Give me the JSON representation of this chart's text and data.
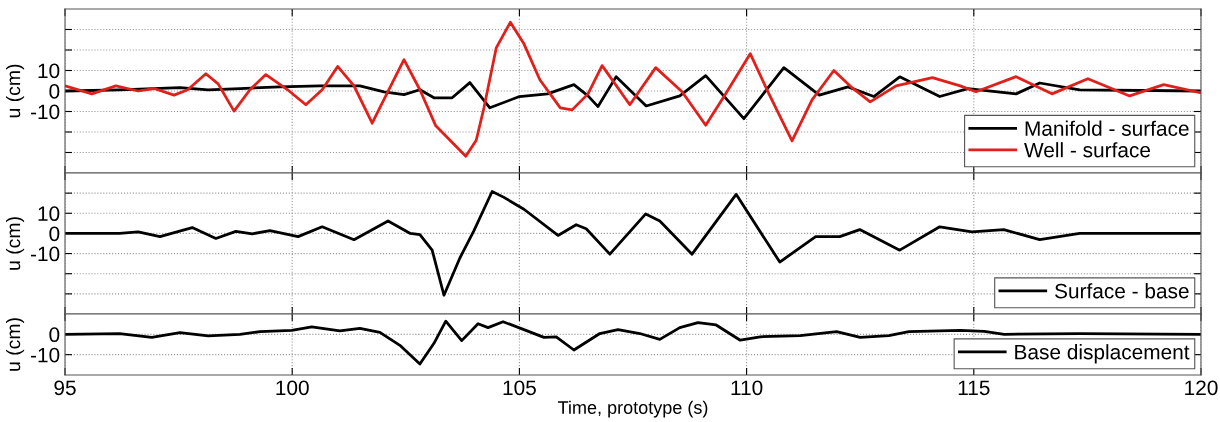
{
  "chart_data": [
    {
      "type": "line",
      "ylabel": "u (cm)",
      "xlim": [
        95,
        120
      ],
      "xticks": [
        95,
        100,
        105,
        110,
        115,
        120
      ],
      "ylim": [
        -40,
        40
      ],
      "yticks": [
        {
          "value": -30,
          "label": null
        },
        {
          "value": -20,
          "label": null
        },
        -10,
        0,
        10,
        {
          "value": 20,
          "label": null
        },
        {
          "value": 30,
          "label": null
        }
      ],
      "tick_labels": "y",
      "grid": true,
      "legend": "bottom right",
      "line_style": "solid",
      "marker": "none",
      "series": [
        {
          "name": "Manifold - surface",
          "color": "#000000",
          "x": [
            95.0,
            96.2,
            97.53,
            98.15,
            98.85,
            99.73,
            100.61,
            101.49,
            102.02,
            102.46,
            102.81,
            103.12,
            103.52,
            103.91,
            104.35,
            105.0,
            105.62,
            106.2,
            106.51,
            106.73,
            107.13,
            107.79,
            108.53,
            109.1,
            109.94,
            110.82,
            111.6,
            112.23,
            112.8,
            113.37,
            114.25,
            114.87,
            115.93,
            116.45,
            117.33,
            119.98
          ],
          "values": [
            0,
            0.6,
            1.6,
            0.6,
            1.2,
            2,
            2.5,
            2.5,
            -0.4,
            -1.8,
            0.6,
            -3.3,
            -3.3,
            4.1,
            -8.2,
            -2.7,
            -1.4,
            3.1,
            -2.4,
            -7.6,
            7,
            -7.3,
            -2.4,
            7.5,
            -13.5,
            11.4,
            -2,
            2,
            -2.7,
            6.9,
            -2.7,
            1.2,
            -1.4,
            3.9,
            0.6,
            0
          ]
        },
        {
          "name": "Well - surface",
          "color": "#e0201b",
          "x": [
            95.0,
            95.59,
            96.12,
            96.61,
            96.96,
            97.4,
            97.7,
            98.1,
            98.37,
            98.72,
            99.07,
            99.42,
            99.9,
            100.3,
            100.66,
            101.0,
            101.36,
            101.76,
            102.15,
            102.46,
            102.81,
            103.16,
            103.43,
            103.82,
            104.05,
            104.22,
            104.49,
            104.8,
            105.1,
            105.45,
            105.9,
            106.16,
            106.51,
            106.82,
            107.43,
            108.0,
            108.58,
            109.1,
            109.54,
            110.08,
            110.47,
            111.0,
            111.44,
            111.92,
            112.32,
            112.72,
            113.29,
            114.09,
            114.7,
            115.05,
            115.93,
            116.72,
            117.51,
            118.43,
            119.18,
            119.98
          ],
          "values": [
            2.5,
            -1.4,
            2.5,
            0,
            1.2,
            -2,
            0.6,
            8.4,
            3.5,
            -9.8,
            0.6,
            8,
            0.6,
            -6.7,
            0.6,
            12,
            2.5,
            -15.7,
            1.6,
            15.3,
            0.6,
            -17,
            -23,
            -31.8,
            -24,
            -8.2,
            21,
            33.5,
            23,
            5.5,
            -8.2,
            -9.2,
            -1.4,
            12.4,
            -6.7,
            11.4,
            -0.4,
            -16.7,
            -1.4,
            18.2,
            -0.4,
            -24.3,
            -4.3,
            10,
            1.6,
            -5.3,
            2.5,
            6.5,
            2.5,
            -0.4,
            7,
            -1.4,
            6,
            -2.4,
            3.1,
            -0.8
          ]
        }
      ]
    },
    {
      "type": "line",
      "ylabel": "u (cm)",
      "xlim": [
        95,
        120
      ],
      "xticks": [
        95,
        100,
        105,
        110,
        115,
        120
      ],
      "ylim": [
        -40,
        30
      ],
      "yticks": [
        {
          "value": -30,
          "label": null
        },
        {
          "value": -20,
          "label": null
        },
        -10,
        0,
        10,
        {
          "value": 20,
          "label": null
        }
      ],
      "tick_labels": "y",
      "grid": true,
      "legend": "bottom right",
      "line_style": "solid",
      "marker": "none",
      "series": [
        {
          "name": "Surface - base",
          "color": "#000000",
          "x": [
            95,
            96.2,
            96.61,
            97.09,
            97.8,
            98.32,
            98.76,
            99.12,
            99.51,
            100.13,
            100.66,
            101.36,
            102.11,
            102.6,
            102.81,
            103.08,
            103.34,
            103.69,
            104.0,
            104.4,
            104.66,
            105.1,
            105.85,
            106.25,
            106.47,
            106.99,
            107.78,
            108.09,
            108.8,
            109.77,
            110.73,
            111.52,
            112.05,
            112.49,
            113.37,
            114.25,
            114.96,
            115.66,
            116.45,
            117.33,
            119.98
          ],
          "values": [
            0,
            0,
            0.8,
            -1.6,
            2.9,
            -2.5,
            1,
            -0.2,
            1.4,
            -1.6,
            3.3,
            -3.1,
            6.2,
            0,
            -0.6,
            -8.3,
            -30.7,
            -12.2,
            1.4,
            20.8,
            17.9,
            12,
            -1,
            4.3,
            2.3,
            -10.3,
            9.7,
            6.2,
            -10.3,
            19.4,
            -14.2,
            -1.6,
            -1.6,
            1.9,
            -8.3,
            3.3,
            0.8,
            1.9,
            -3.1,
            0,
            0
          ]
        }
      ]
    },
    {
      "type": "line",
      "ylabel": "u (cm)",
      "xlabel": "Time, prototype (s)",
      "xlim": [
        95,
        120
      ],
      "xticks": [
        95,
        100,
        105,
        110,
        115,
        120
      ],
      "ylim": [
        -20,
        10
      ],
      "yticks": [
        -10,
        0
      ],
      "grid": true,
      "legend": "bottom right",
      "line_style": "solid",
      "marker": "none",
      "series": [
        {
          "name": "Base displacement",
          "color": "#000000",
          "x": [
            95,
            96.2,
            96.91,
            97.53,
            98.15,
            98.85,
            99.29,
            99.99,
            100.43,
            101.05,
            101.49,
            101.93,
            102.37,
            102.81,
            103.12,
            103.38,
            103.73,
            104.09,
            104.31,
            104.64,
            105.1,
            105.54,
            105.81,
            106.2,
            106.77,
            107.17,
            107.65,
            108.09,
            108.53,
            108.93,
            109.33,
            109.86,
            110.3,
            111.18,
            111.98,
            112.5,
            113.13,
            113.57,
            114.7,
            115.23,
            115.67,
            117.33,
            119.98
          ],
          "values": [
            0,
            0.4,
            -1.5,
            0.8,
            -0.8,
            0,
            1.3,
            1.9,
            3.7,
            1.7,
            2.9,
            1,
            -5.4,
            -14.6,
            -4.4,
            6.5,
            -3.1,
            5.2,
            3.3,
            6.2,
            2.3,
            -1.5,
            -1.2,
            -7.7,
            0.4,
            2.3,
            0.4,
            -2.5,
            3.3,
            5.8,
            4.6,
            -2.9,
            -1.2,
            -0.6,
            1.3,
            -1.5,
            -0.6,
            1.3,
            1.9,
            1.5,
            0,
            0.4,
            0
          ]
        }
      ]
    }
  ]
}
